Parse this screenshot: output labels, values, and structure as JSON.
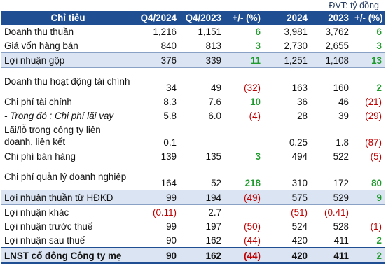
{
  "unit_note": "ĐVT: tỷ đồng",
  "headers": [
    "Chỉ tiêu",
    "Q4/2024",
    "Q4/2023",
    "+/- (%)",
    "2024",
    "2023",
    "+/- (%)"
  ],
  "rows": [
    {
      "label": "Doanh thu thuần",
      "q4_2024": "1,216",
      "q4_2023": "1,151",
      "q_change": "6",
      "q_change_type": "pos",
      "y2024": "3,981",
      "y2023": "3,762",
      "y_change": "6",
      "y_change_type": "pos"
    },
    {
      "label": "Giá vốn hàng bán",
      "q4_2024": "840",
      "q4_2023": "813",
      "q_change": "3",
      "q_change_type": "pos",
      "y2024": "2,730",
      "y2023": "2,655",
      "y_change": "3",
      "y_change_type": "pos"
    },
    {
      "label": "Lợi nhuận gộp",
      "q4_2024": "376",
      "q4_2023": "339",
      "q_change": "11",
      "q_change_type": "pos",
      "y2024": "1,251",
      "y2023": "1,108",
      "y_change": "13",
      "y_change_type": "pos"
    },
    {
      "label": "Doanh thu hoạt động tài chính",
      "q4_2024": "34",
      "q4_2023": "49",
      "q_change": "(32)",
      "q_change_type": "neg",
      "y2024": "163",
      "y2023": "160",
      "y_change": "2",
      "y_change_type": "pos"
    },
    {
      "label": "Chi phí tài chính",
      "q4_2024": "8.3",
      "q4_2023": "7.6",
      "q_change": "10",
      "q_change_type": "pos",
      "y2024": "36",
      "y2023": "46",
      "y_change": "(21)",
      "y_change_type": "neg"
    },
    {
      "label": "- Trong đó : Chi phí lãi vay",
      "q4_2024": "5.8",
      "q4_2023": "6.0",
      "q_change": "(4)",
      "q_change_type": "neg",
      "y2024": "28",
      "y2023": "39",
      "y_change": "(29)",
      "y_change_type": "neg"
    },
    {
      "label": "Lãi/lỗ trong công ty liên doanh, liên kết",
      "q4_2024": "0.1",
      "q4_2023": "",
      "q_change": "",
      "q_change_type": "",
      "y2024": "0.25",
      "y2023": "1.8",
      "y_change": "(87)",
      "y_change_type": "neg"
    },
    {
      "label": "Chi phí bán hàng",
      "q4_2024": "139",
      "q4_2023": "135",
      "q_change": "3",
      "q_change_type": "pos",
      "y2024": "494",
      "y2023": "522",
      "y_change": "(5)",
      "y_change_type": "neg"
    },
    {
      "label": "Chi phí quản lý doanh nghiệp",
      "q4_2024": "164",
      "q4_2023": "52",
      "q_change": "218",
      "q_change_type": "pos",
      "y2024": "310",
      "y2023": "172",
      "y_change": "80",
      "y_change_type": "pos"
    },
    {
      "label": "Lợi nhuận thuần từ HĐKD",
      "q4_2024": "99",
      "q4_2023": "194",
      "q_change": "(49)",
      "q_change_type": "neg",
      "y2024": "575",
      "y2023": "529",
      "y_change": "9",
      "y_change_type": "pos"
    },
    {
      "label": "Lợi nhuận khác",
      "q4_2024": "(0.11)",
      "q4_2023": "2.7",
      "q_change": "",
      "q_change_type": "",
      "y2024": "(51)",
      "y2023": "(0.41)",
      "y_change": "",
      "y_change_type": ""
    },
    {
      "label": "Lợi nhuận trước thuế",
      "q4_2024": "99",
      "q4_2023": "197",
      "q_change": "(50)",
      "q_change_type": "neg",
      "y2024": "524",
      "y2023": "528",
      "y_change": "(1)",
      "y_change_type": "neg"
    },
    {
      "label": "Lợi nhuận sau thuế",
      "q4_2024": "90",
      "q4_2023": "162",
      "q_change": "(44)",
      "q_change_type": "neg",
      "y2024": "420",
      "y2023": "411",
      "y_change": "2",
      "y_change_type": "pos"
    },
    {
      "label": "LNST cổ đông Công ty mẹ",
      "q4_2024": "90",
      "q4_2023": "162",
      "q_change": "(44)",
      "q_change_type": "neg",
      "y2024": "420",
      "y2023": "411",
      "y_change": "2",
      "y_change_type": "pos"
    }
  ],
  "colors": {
    "header_bg": "#1f4e93",
    "highlight_bg": "#dbe4f2",
    "positive": "#1e9b2c",
    "negative": "#c00000"
  }
}
